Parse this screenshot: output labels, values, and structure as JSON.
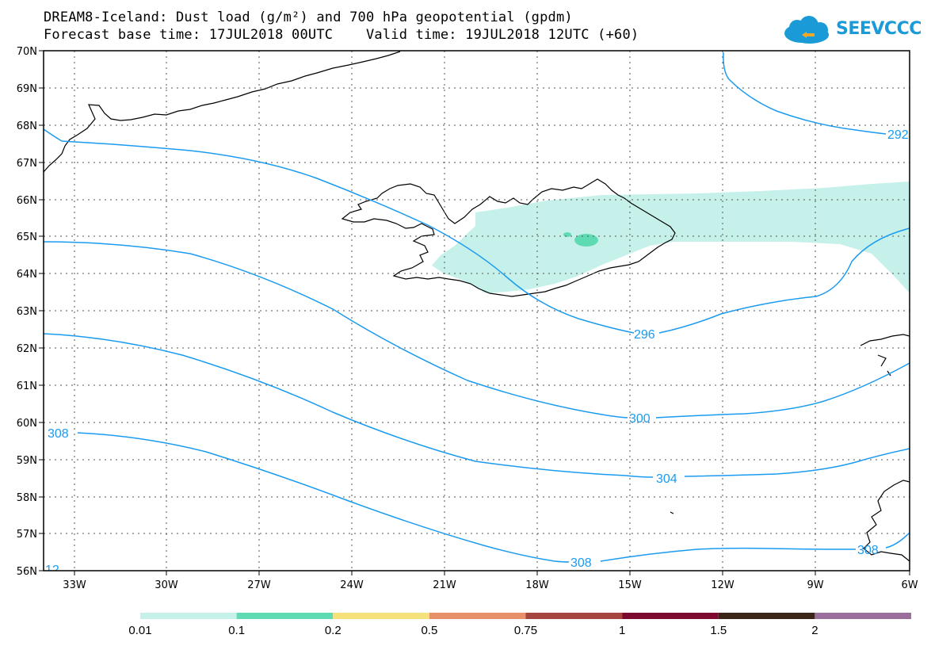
{
  "title_line1": "DREAM8-Iceland: Dust load (g/m²) and 700 hPa geopotential (gpdm)",
  "title_line2": "Forecast base time: 17JUL2018 00UTC    Valid time: 19JUL2018 12UTC (+60)",
  "logo": {
    "text": "SEEVCCC",
    "icon": "cloud-icon",
    "color": "#1a9bd7"
  },
  "map": {
    "lat_labels": [
      "70N",
      "69N",
      "68N",
      "67N",
      "66N",
      "65N",
      "64N",
      "63N",
      "62N",
      "61N",
      "60N",
      "59N",
      "58N",
      "57N",
      "56N"
    ],
    "lon_labels": [
      "33W",
      "30W",
      "27W",
      "24W",
      "21W",
      "18W",
      "15W",
      "12W",
      "9W",
      "6W"
    ],
    "contour_color": "#1a9bf0",
    "contour_labels": [
      "292",
      "296",
      "300",
      "304",
      "308",
      "308",
      "308",
      "12"
    ],
    "dust_colors": {
      "low": "#c6f1ea",
      "mid": "#5fdbb4"
    }
  },
  "colorbar": {
    "colors": [
      "#c6f1ea",
      "#5fdbb4",
      "#f5e27a",
      "#e8906a",
      "#a5463e",
      "#7d0a2e",
      "#3b2418",
      "#9a6f9c"
    ],
    "labels": [
      "0.01",
      "0.1",
      "0.2",
      "0.5",
      "0.75",
      "1",
      "1.5",
      "2"
    ]
  }
}
